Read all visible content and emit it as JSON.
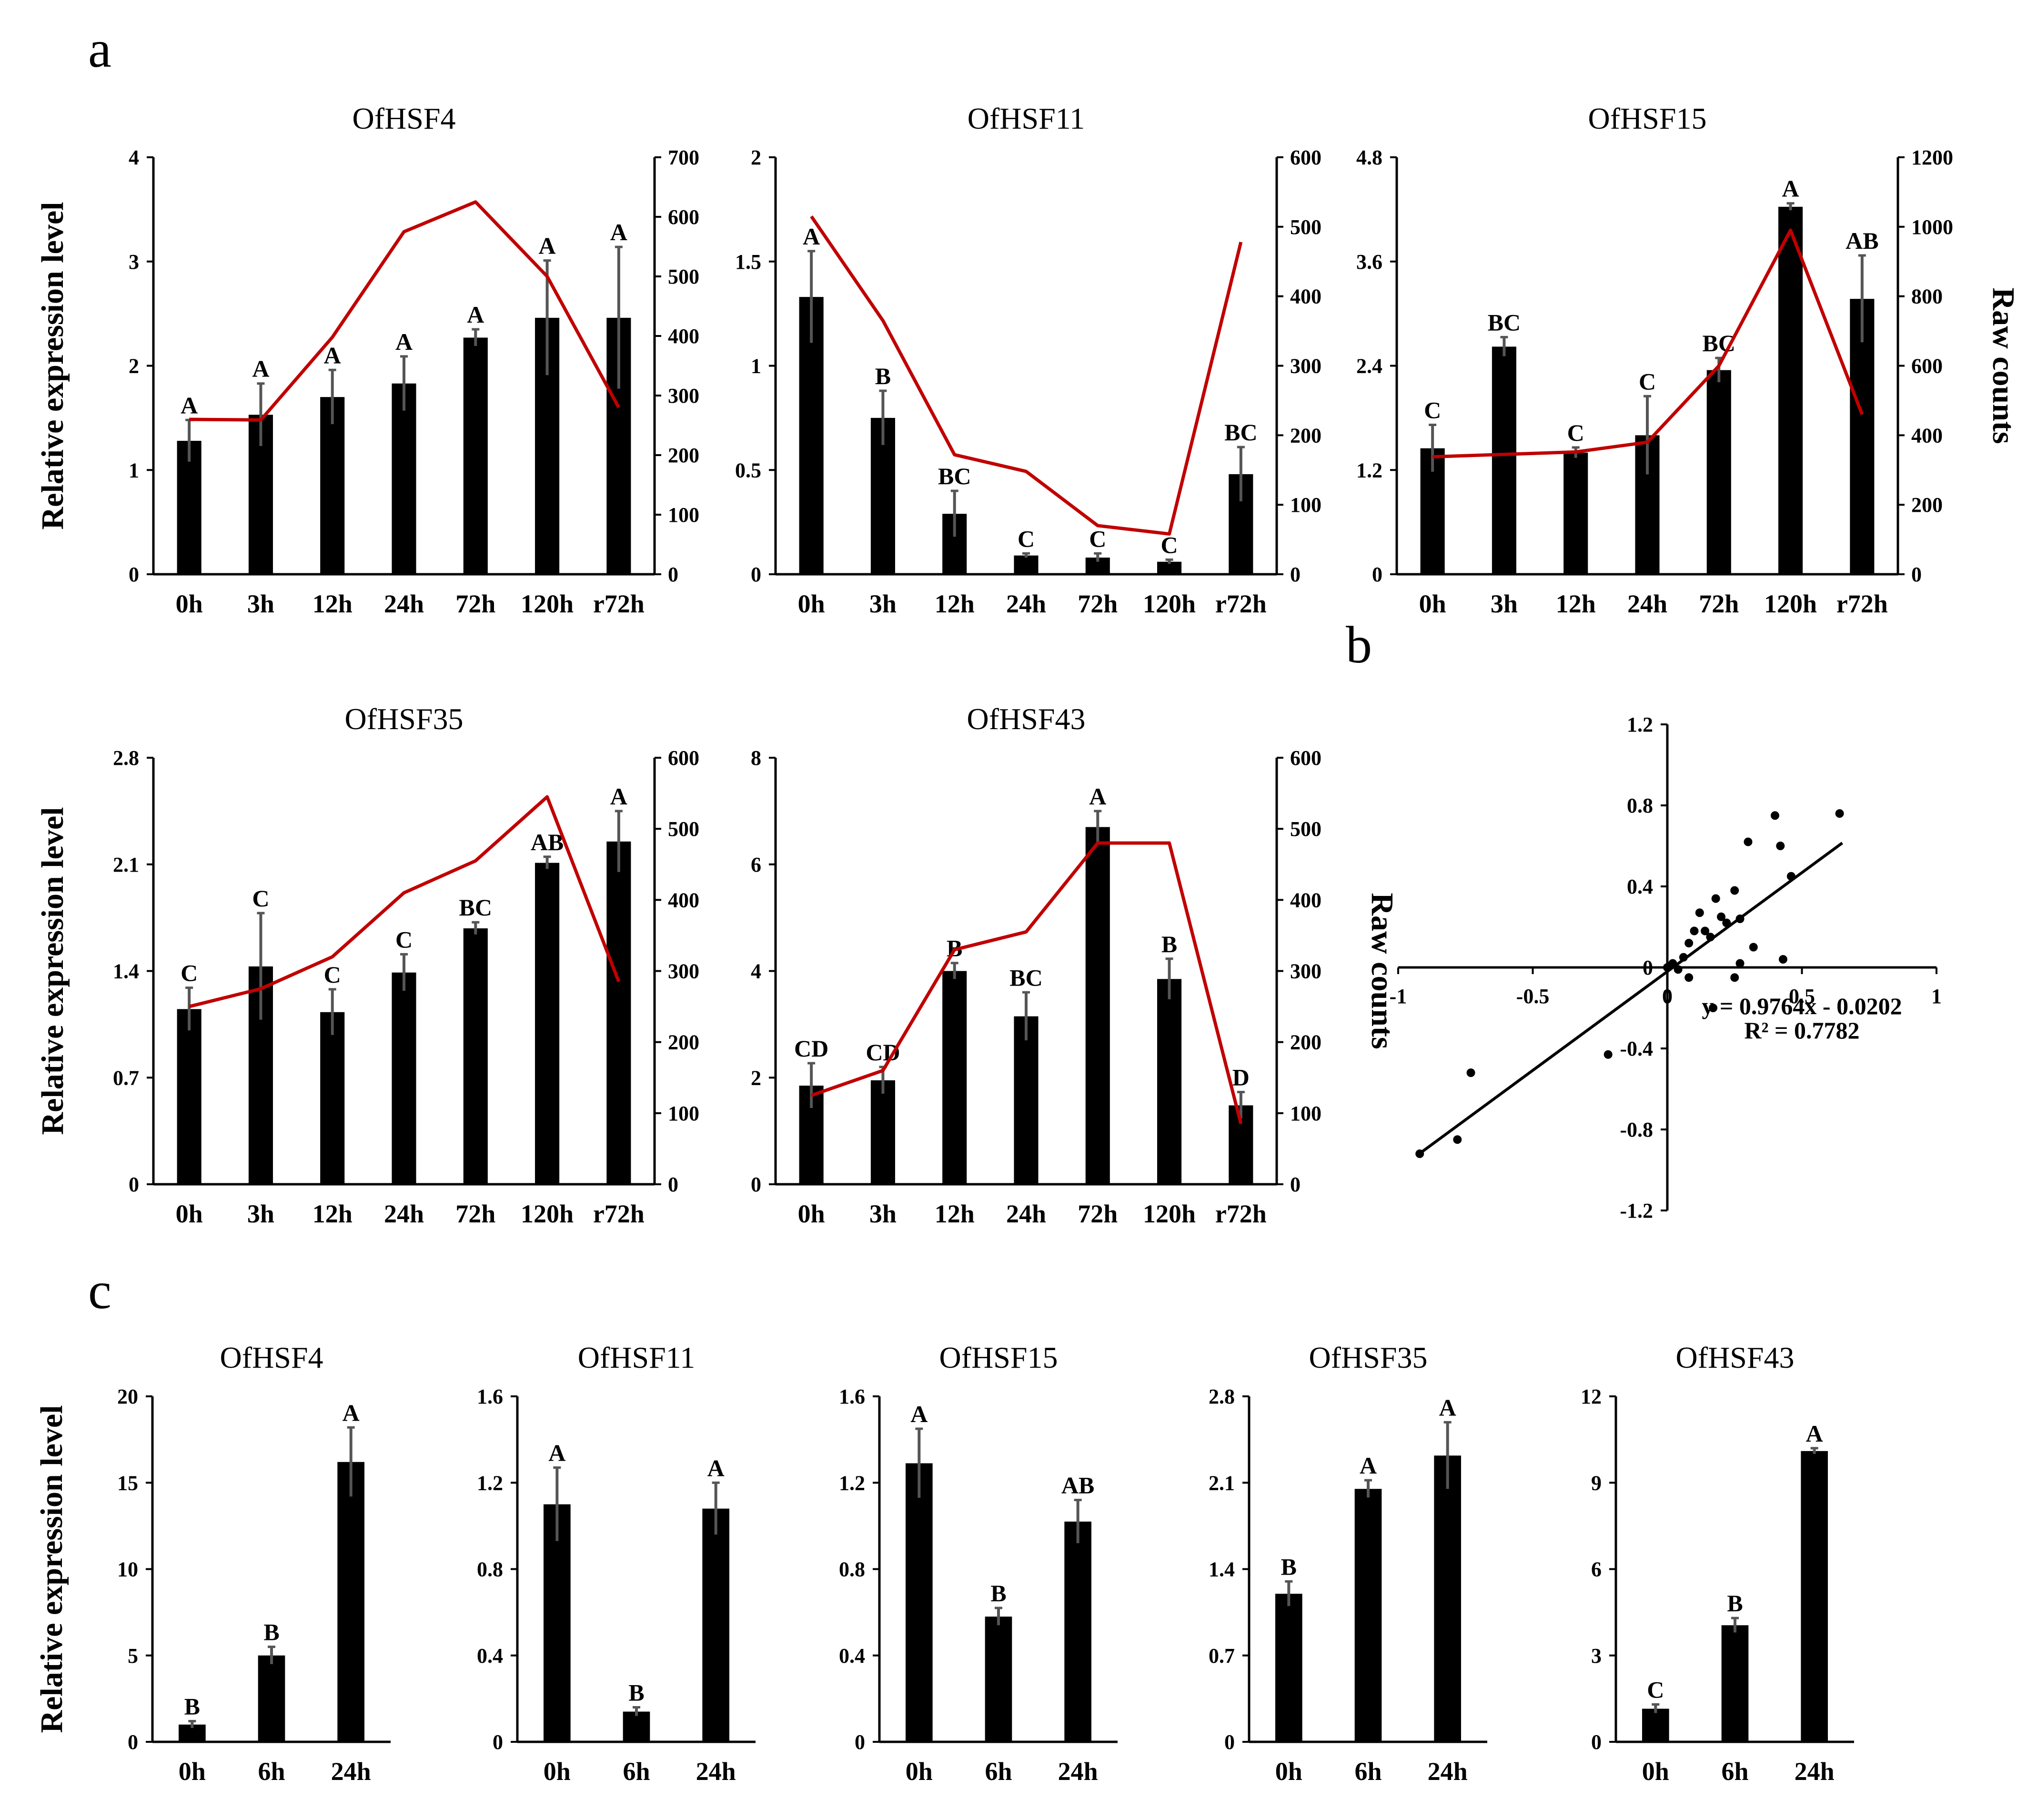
{
  "panel_labels": {
    "a": "a",
    "b": "b",
    "c": "c"
  },
  "colors": {
    "bar": "#000000",
    "line": "#c00000",
    "error": "#555555",
    "text": "#000000"
  },
  "chart_data": [
    {
      "id": "a1",
      "panel": "a",
      "type": "bar+line",
      "title": "OfHSF4",
      "categories": [
        "0h",
        "3h",
        "12h",
        "24h",
        "72h",
        "120h",
        "r72h"
      ],
      "bar_series": {
        "name": "Relative expression level",
        "values": [
          1.28,
          1.53,
          1.7,
          1.83,
          2.27,
          2.46,
          2.46
        ],
        "errors": [
          0.2,
          0.3,
          0.26,
          0.26,
          0.08,
          0.55,
          0.68
        ]
      },
      "letters": [
        "A",
        "A",
        "A",
        "A",
        "A",
        "A",
        "A"
      ],
      "line_series": {
        "name": "Raw counts",
        "values": [
          260,
          259,
          398,
          575,
          625,
          500,
          280
        ]
      },
      "ylim": [
        0,
        4
      ],
      "yticks": [
        "0",
        "1",
        "2",
        "3",
        "4"
      ],
      "y2lim": [
        0,
        700
      ],
      "y2ticks": [
        "0",
        "100",
        "200",
        "300",
        "400",
        "500",
        "600",
        "700"
      ],
      "ylabel": "Relative expression level",
      "y2label": ""
    },
    {
      "id": "a2",
      "panel": "a",
      "type": "bar+line",
      "title": "OfHSF11",
      "categories": [
        "0h",
        "3h",
        "12h",
        "24h",
        "72h",
        "120h",
        "r72h"
      ],
      "bar_series": {
        "name": "Relative expression level",
        "values": [
          1.33,
          0.75,
          0.29,
          0.09,
          0.08,
          0.06,
          0.48
        ],
        "errors": [
          0.22,
          0.13,
          0.11,
          0.01,
          0.02,
          0.01,
          0.13
        ]
      },
      "letters": [
        "A",
        "B",
        "BC",
        "C",
        "C",
        "C",
        "BC"
      ],
      "line_series": {
        "name": "Raw counts",
        "values": [
          515,
          365,
          172,
          148,
          70,
          58,
          478
        ]
      },
      "ylim": [
        0,
        2
      ],
      "yticks": [
        "0",
        "0.5",
        "1",
        "1.5",
        "2"
      ],
      "y2lim": [
        0,
        600
      ],
      "y2ticks": [
        "0",
        "100",
        "200",
        "300",
        "400",
        "500",
        "600"
      ],
      "ylabel": "",
      "y2label": ""
    },
    {
      "id": "a3",
      "panel": "a",
      "type": "bar+line",
      "title": "OfHSF15",
      "categories": [
        "0h",
        "3h",
        "12h",
        "24h",
        "72h",
        "120h",
        "r72h"
      ],
      "bar_series": {
        "name": "Relative expression level",
        "values": [
          1.45,
          2.62,
          1.4,
          1.6,
          2.35,
          4.23,
          3.17
        ],
        "errors": [
          0.27,
          0.11,
          0.06,
          0.45,
          0.14,
          0.04,
          0.5
        ]
      },
      "letters": [
        "C",
        "BC",
        "C",
        "C",
        "BC",
        "A",
        "AB"
      ],
      "line_series": {
        "name": "Raw counts",
        "values": [
          338,
          345,
          352,
          380,
          600,
          990,
          460
        ]
      },
      "ylim": [
        0,
        4.8
      ],
      "yticks": [
        "0",
        "1.2",
        "2.4",
        "3.6",
        "4.8"
      ],
      "y2lim": [
        0,
        1200
      ],
      "y2ticks": [
        "0",
        "200",
        "400",
        "600",
        "800",
        "1000",
        "1200"
      ],
      "ylabel": "",
      "y2label": "Raw counts"
    },
    {
      "id": "a4",
      "panel": "a",
      "type": "bar+line",
      "title": "OfHSF35",
      "categories": [
        "0h",
        "3h",
        "12h",
        "24h",
        "72h",
        "120h",
        "r72h"
      ],
      "bar_series": {
        "name": "Relative expression level",
        "values": [
          1.15,
          1.43,
          1.13,
          1.39,
          1.68,
          2.11,
          2.25
        ],
        "errors": [
          0.14,
          0.35,
          0.15,
          0.12,
          0.04,
          0.04,
          0.2
        ]
      },
      "letters": [
        "C",
        "C",
        "C",
        "C",
        "BC",
        "AB",
        "A"
      ],
      "line_series": {
        "name": "Raw counts",
        "values": [
          250,
          275,
          320,
          410,
          455,
          545,
          285
        ]
      },
      "ylim": [
        0,
        2.8
      ],
      "yticks": [
        "0",
        "0.7",
        "1.4",
        "2.1",
        "2.8"
      ],
      "y2lim": [
        0,
        600
      ],
      "y2ticks": [
        "0",
        "100",
        "200",
        "300",
        "400",
        "500",
        "600"
      ],
      "ylabel": "Relative expression level",
      "y2label": ""
    },
    {
      "id": "a5",
      "panel": "a",
      "type": "bar+line",
      "title": "OfHSF43",
      "categories": [
        "0h",
        "3h",
        "12h",
        "24h",
        "72h",
        "120h",
        "r72h"
      ],
      "bar_series": {
        "name": "Relative expression level",
        "values": [
          1.85,
          1.95,
          4.0,
          3.15,
          6.7,
          3.85,
          1.48
        ],
        "errors": [
          0.42,
          0.25,
          0.15,
          0.45,
          0.3,
          0.38,
          0.25
        ]
      },
      "letters": [
        "CD",
        "CD",
        "B",
        "BC",
        "A",
        "B",
        "D"
      ],
      "line_series": {
        "name": "Raw counts",
        "values": [
          125,
          160,
          330,
          355,
          480,
          480,
          85
        ]
      },
      "ylim": [
        0,
        8
      ],
      "yticks": [
        "0",
        "2",
        "4",
        "6",
        "8"
      ],
      "y2lim": [
        0,
        600
      ],
      "y2ticks": [
        "0",
        "100",
        "200",
        "300",
        "400",
        "500",
        "600"
      ],
      "ylabel": "",
      "y2label": "Raw counts"
    },
    {
      "id": "b",
      "panel": "b",
      "type": "scatter",
      "title": "",
      "xlim": [
        -1,
        1
      ],
      "ylim": [
        -1.2,
        1.2
      ],
      "xticks": [
        "-1",
        "-0.5",
        "0",
        "0.5",
        "1"
      ],
      "yticks": [
        "-1.2",
        "-0.8",
        "-0.4",
        "0",
        "0.4",
        "0.8",
        "1.2"
      ],
      "points": [
        [
          -0.92,
          -0.92
        ],
        [
          -0.78,
          -0.85
        ],
        [
          -0.73,
          -0.52
        ],
        [
          -0.22,
          -0.43
        ],
        [
          0.0,
          0.0
        ],
        [
          0.02,
          0.02
        ],
        [
          0.04,
          -0.01
        ],
        [
          0.06,
          0.05
        ],
        [
          0.08,
          0.12
        ],
        [
          0.1,
          0.18
        ],
        [
          0.12,
          0.27
        ],
        [
          0.14,
          0.18
        ],
        [
          0.16,
          0.15
        ],
        [
          0.18,
          0.34
        ],
        [
          0.2,
          0.25
        ],
        [
          0.08,
          -0.05
        ],
        [
          0.17,
          -0.2
        ],
        [
          0.22,
          0.22
        ],
        [
          0.25,
          0.38
        ],
        [
          0.27,
          0.24
        ],
        [
          0.3,
          0.62
        ],
        [
          0.32,
          0.1
        ],
        [
          0.4,
          0.75
        ],
        [
          0.42,
          0.6
        ],
        [
          0.43,
          0.04
        ],
        [
          0.46,
          0.45
        ],
        [
          0.64,
          0.76
        ],
        [
          0.25,
          -0.05
        ],
        [
          0.27,
          0.02
        ]
      ],
      "regression": {
        "slope": 0.9764,
        "intercept": -0.0202,
        "x_range": [
          -0.92,
          0.65
        ]
      },
      "equation": "y = 0.9764x - 0.0202",
      "r2": "R² = 0.7782"
    },
    {
      "id": "c1",
      "panel": "c",
      "type": "bar",
      "title": "OfHSF4",
      "categories": [
        "0h",
        "6h",
        "24h"
      ],
      "bar_series": {
        "name": "Relative expression level",
        "values": [
          1.0,
          5.0,
          16.2
        ],
        "errors": [
          0.2,
          0.5,
          2.0
        ]
      },
      "letters": [
        "B",
        "B",
        "A"
      ],
      "ylim": [
        0,
        20
      ],
      "yticks": [
        "0",
        "5",
        "10",
        "15",
        "20"
      ],
      "ylabel": "Relative expression level"
    },
    {
      "id": "c2",
      "panel": "c",
      "type": "bar",
      "title": "OfHSF11",
      "categories": [
        "0h",
        "6h",
        "24h"
      ],
      "bar_series": {
        "name": "Relative expression level",
        "values": [
          1.1,
          0.14,
          1.08
        ],
        "errors": [
          0.17,
          0.02,
          0.12
        ]
      },
      "letters": [
        "A",
        "B",
        "A"
      ],
      "ylim": [
        0,
        1.6
      ],
      "yticks": [
        "0",
        "0.4",
        "0.8",
        "1.2",
        "1.6"
      ],
      "ylabel": ""
    },
    {
      "id": "c3",
      "panel": "c",
      "type": "bar",
      "title": "OfHSF15",
      "categories": [
        "0h",
        "6h",
        "24h"
      ],
      "bar_series": {
        "name": "Relative expression level",
        "values": [
          1.29,
          0.58,
          1.02
        ],
        "errors": [
          0.16,
          0.04,
          0.1
        ]
      },
      "letters": [
        "A",
        "B",
        "AB"
      ],
      "ylim": [
        0,
        1.6
      ],
      "yticks": [
        "0",
        "0.4",
        "0.8",
        "1.2",
        "1.6"
      ],
      "ylabel": ""
    },
    {
      "id": "c4",
      "panel": "c",
      "type": "bar",
      "title": "OfHSF35",
      "categories": [
        "0h",
        "6h",
        "24h"
      ],
      "bar_series": {
        "name": "Relative expression level",
        "values": [
          1.2,
          2.05,
          2.32
        ],
        "errors": [
          0.1,
          0.07,
          0.27
        ]
      },
      "letters": [
        "B",
        "A",
        "A"
      ],
      "ylim": [
        0,
        2.8
      ],
      "yticks": [
        "0",
        "0.7",
        "1.4",
        "2.1",
        "2.8"
      ],
      "ylabel": ""
    },
    {
      "id": "c5",
      "panel": "c",
      "type": "bar",
      "title": "OfHSF43",
      "categories": [
        "0h",
        "6h",
        "24h"
      ],
      "bar_series": {
        "name": "Relative expression level",
        "values": [
          1.15,
          4.05,
          10.1
        ],
        "errors": [
          0.15,
          0.25,
          0.1
        ]
      },
      "letters": [
        "C",
        "B",
        "A"
      ],
      "ylim": [
        0,
        12
      ],
      "yticks": [
        "0",
        "3",
        "6",
        "9",
        "12"
      ],
      "ylabel": ""
    }
  ]
}
